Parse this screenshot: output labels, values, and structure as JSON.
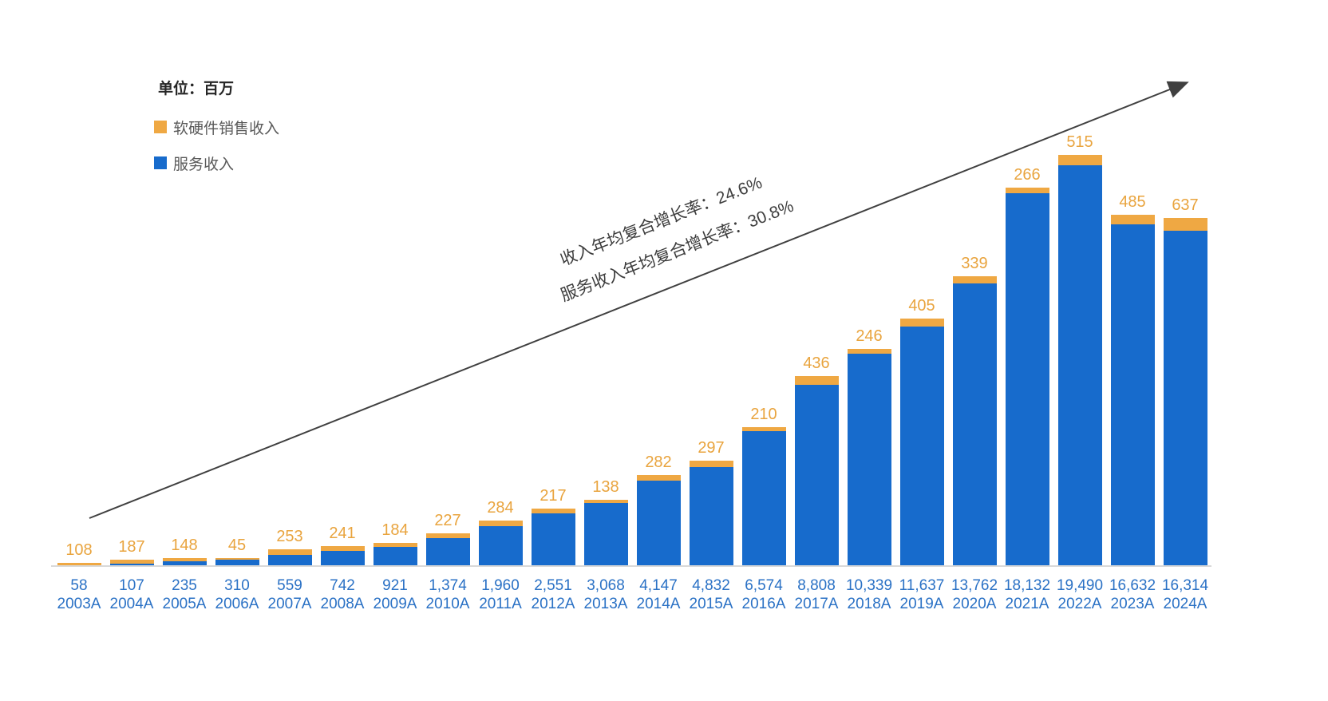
{
  "unit_label": "单位：百万",
  "colors": {
    "service_bar": "#176BCC",
    "hardware_bar": "#EFA843",
    "hardware_label_text": "#E9A43E",
    "axis_label_text": "#2A71C5",
    "axis_line": "#D9D9D9",
    "arrow": "#404040",
    "annotation_text": "#3D3D3D",
    "legend_text": "#595959",
    "unit_label_text": "#262626"
  },
  "legend": {
    "items": [
      {
        "label": "软硬件销售收入",
        "color": "#EFA843"
      },
      {
        "label": "服务收入",
        "color": "#176BCC"
      }
    ]
  },
  "annotations": {
    "line1": "收入年均复合增长率：24.6%",
    "line2": "服务收入年均复合增长率：30.8%"
  },
  "chart_data": {
    "type": "bar",
    "stacked": true,
    "title": "",
    "unit": "百万",
    "legend_position": "top-left",
    "grid": false,
    "ylim": [
      0,
      20005
    ],
    "categories": [
      "2003A",
      "2004A",
      "2005A",
      "2006A",
      "2007A",
      "2008A",
      "2009A",
      "2010A",
      "2011A",
      "2012A",
      "2013A",
      "2014A",
      "2015A",
      "2016A",
      "2017A",
      "2018A",
      "2019A",
      "2020A",
      "2021A",
      "2022A",
      "2023A",
      "2024A"
    ],
    "series": [
      {
        "name": "服务收入",
        "color": "#176BCC",
        "values": [
          58,
          107,
          235,
          310,
          559,
          742,
          921,
          1374,
          1960,
          2551,
          3068,
          4147,
          4832,
          6574,
          8808,
          10339,
          11637,
          13762,
          18132,
          19490,
          16632,
          16314
        ]
      },
      {
        "name": "软硬件销售收入",
        "color": "#EFA843",
        "values": [
          108,
          187,
          148,
          45,
          253,
          241,
          184,
          227,
          284,
          217,
          138,
          282,
          297,
          210,
          436,
          246,
          405,
          339,
          266,
          515,
          485,
          637
        ]
      }
    ],
    "bar_top_labels_series": "软硬件销售收入",
    "x_axis_value_labels_series": "服务收入",
    "annotations": [
      "收入年均复合增长率：24.6%",
      "服务收入年均复合增长率：30.8%"
    ]
  }
}
